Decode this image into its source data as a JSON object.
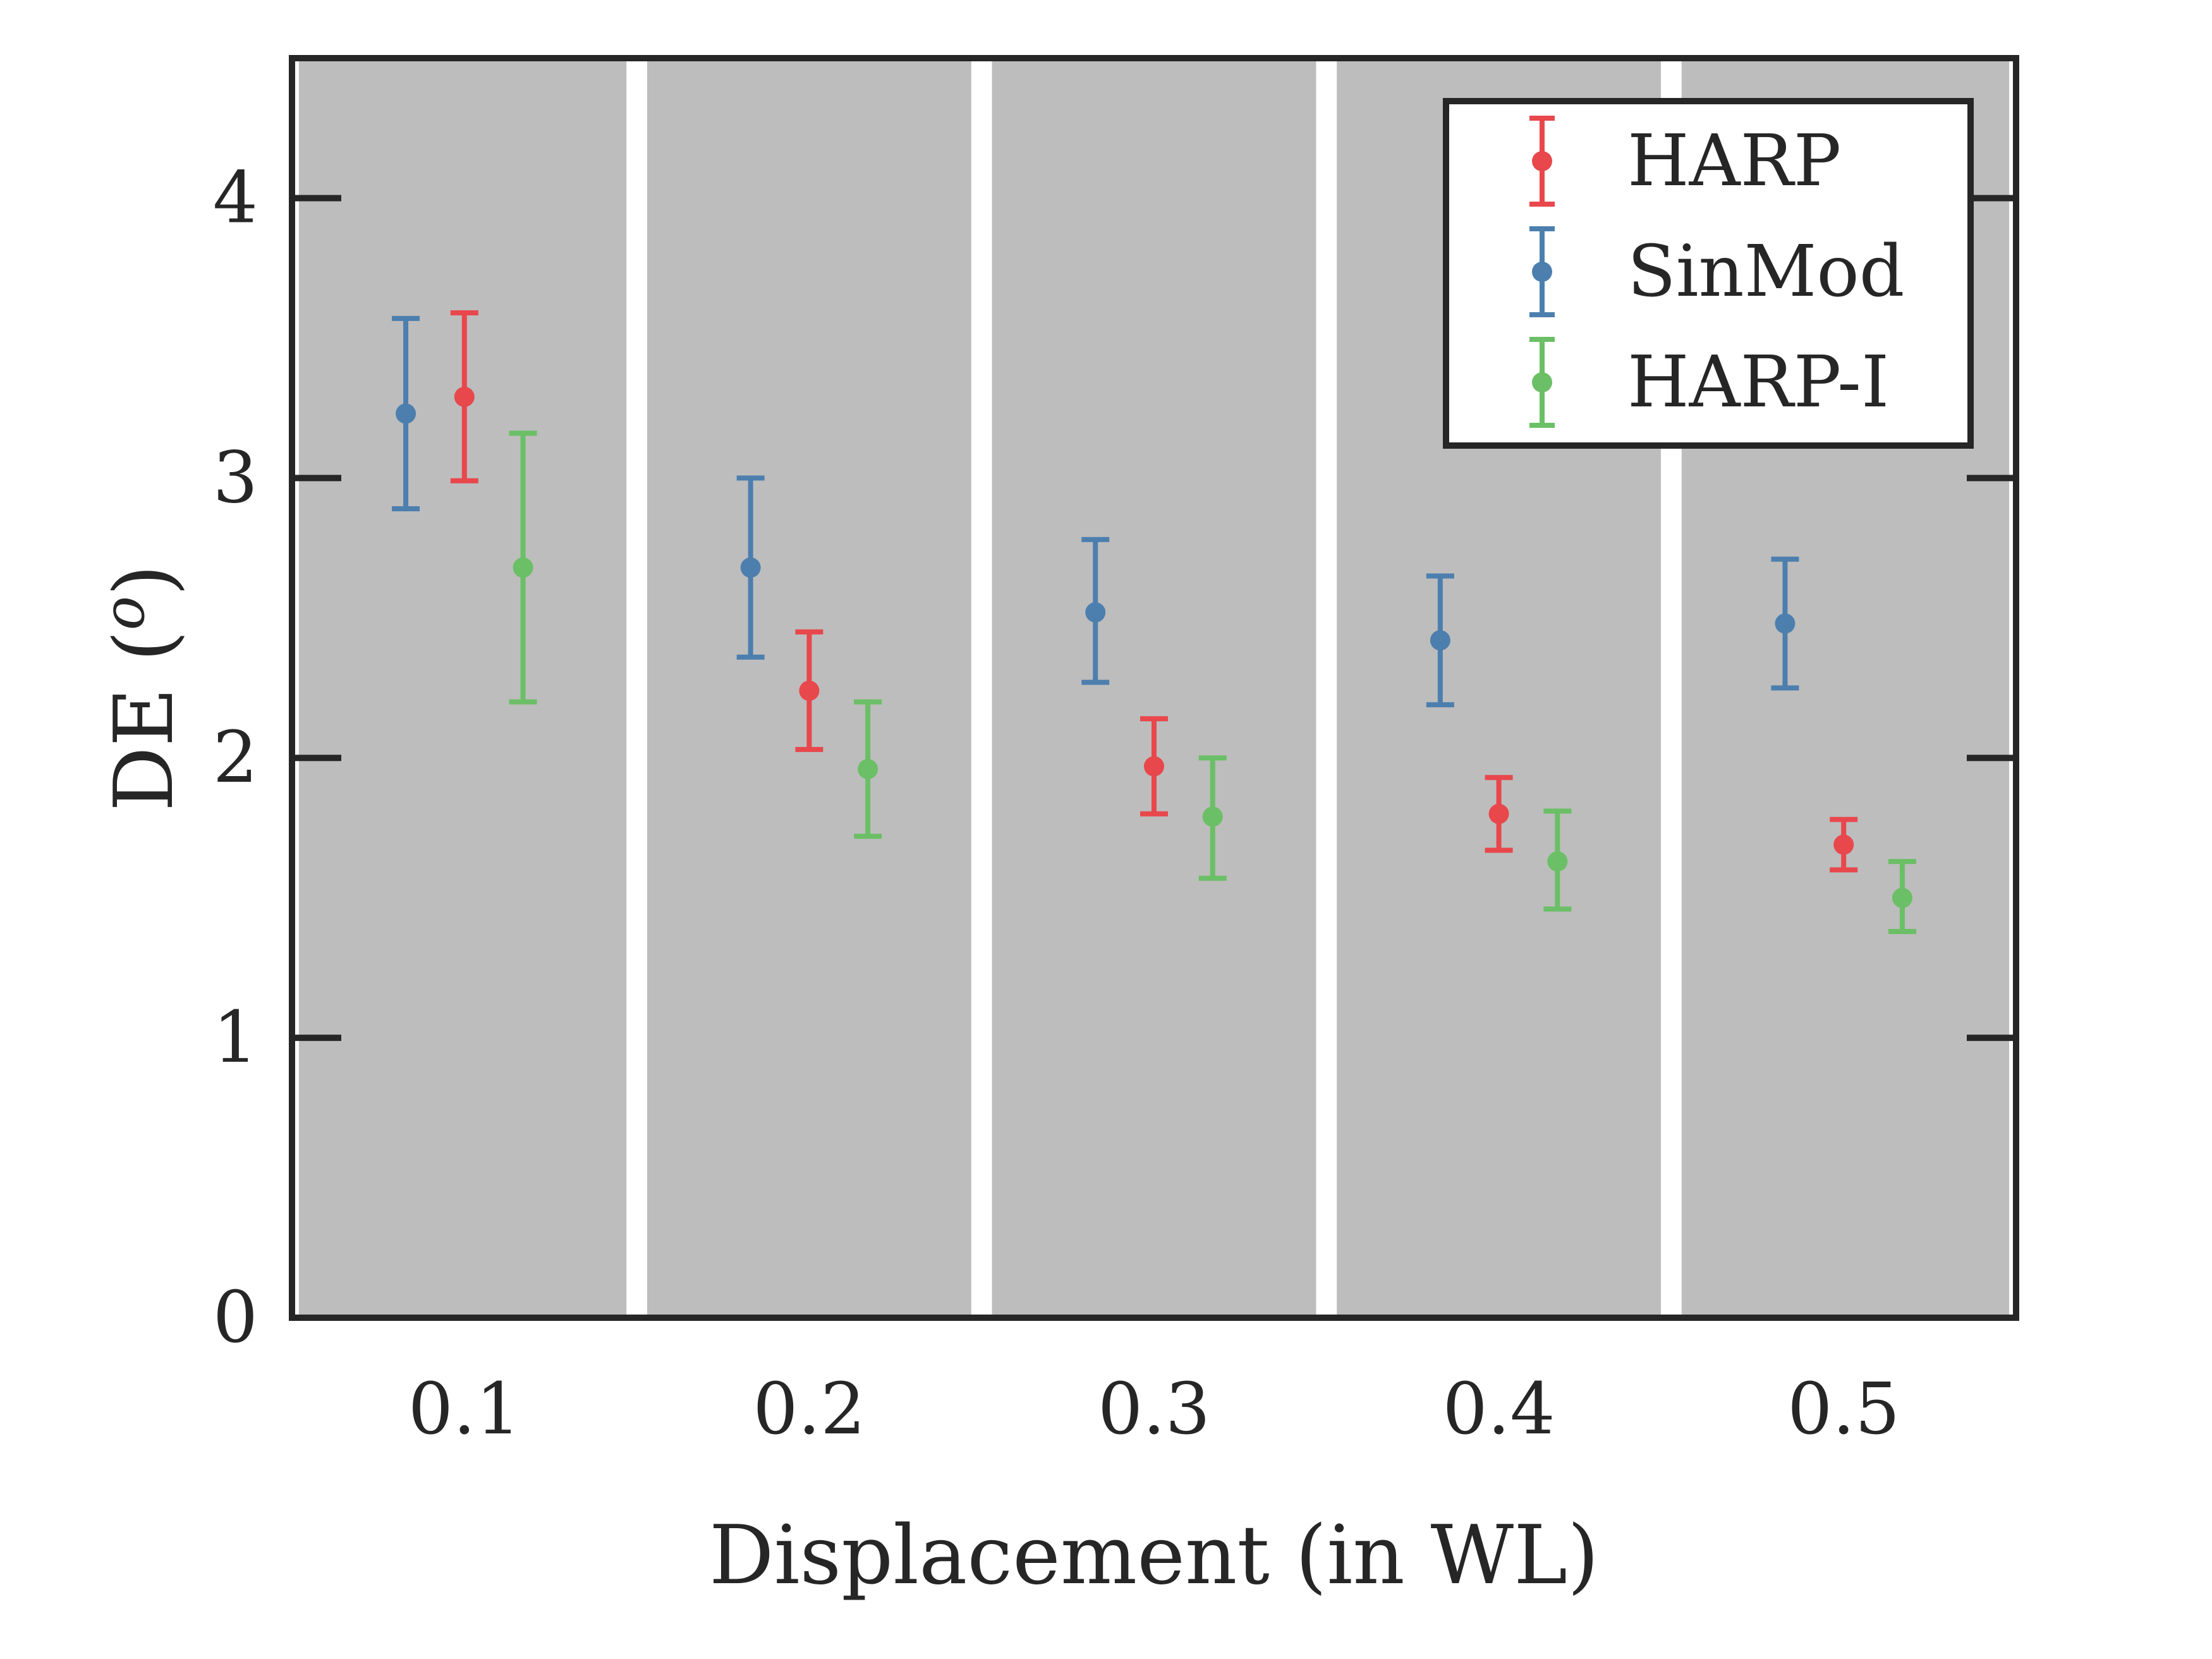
{
  "chart_data": {
    "type": "errorbar",
    "xlabel": "Displacement (in WL)",
    "ylabel": "DE (°)",
    "ylabel_parts": {
      "main": "DE (",
      "sup": "o",
      "end": ")"
    },
    "xlim": [
      0.05,
      0.55
    ],
    "ylim": [
      0,
      4.5
    ],
    "x_ticks": [
      "0.1",
      "0.2",
      "0.3",
      "0.4",
      "0.5"
    ],
    "x_tick_values": [
      0.1,
      0.2,
      0.3,
      0.4,
      0.5
    ],
    "y_ticks": [
      "0",
      "1",
      "2",
      "3",
      "4"
    ],
    "y_tick_values": [
      0,
      1,
      2,
      3,
      4
    ],
    "grid": false,
    "background_bands": [
      [
        0.052,
        0.147
      ],
      [
        0.153,
        0.247
      ],
      [
        0.253,
        0.347
      ],
      [
        0.353,
        0.447
      ],
      [
        0.453,
        0.548
      ]
    ],
    "legend_position": "top-right",
    "series": [
      {
        "name": "HARP",
        "color": "#e8474c",
        "x": [
          0.1,
          0.2,
          0.3,
          0.4,
          0.5
        ],
        "y": [
          3.29,
          2.24,
          1.97,
          1.8,
          1.69
        ],
        "lower": [
          2.99,
          2.03,
          1.8,
          1.67,
          1.6
        ],
        "upper": [
          3.59,
          2.45,
          2.14,
          1.93,
          1.78
        ]
      },
      {
        "name": "SinMod",
        "color": "#4c7fae",
        "x": [
          0.083,
          0.183,
          0.283,
          0.383,
          0.483
        ],
        "y": [
          3.23,
          2.68,
          2.52,
          2.42,
          2.48
        ],
        "lower": [
          2.89,
          2.36,
          2.27,
          2.19,
          2.25
        ],
        "upper": [
          3.57,
          3.0,
          2.78,
          2.65,
          2.71
        ]
      },
      {
        "name": "HARP-I",
        "color": "#6bbf66",
        "x": [
          0.117,
          0.217,
          0.317,
          0.417,
          0.517
        ],
        "y": [
          2.68,
          1.96,
          1.79,
          1.63,
          1.5
        ],
        "lower": [
          2.2,
          1.72,
          1.57,
          1.46,
          1.38
        ],
        "upper": [
          3.16,
          2.2,
          2.0,
          1.81,
          1.63
        ]
      }
    ]
  }
}
